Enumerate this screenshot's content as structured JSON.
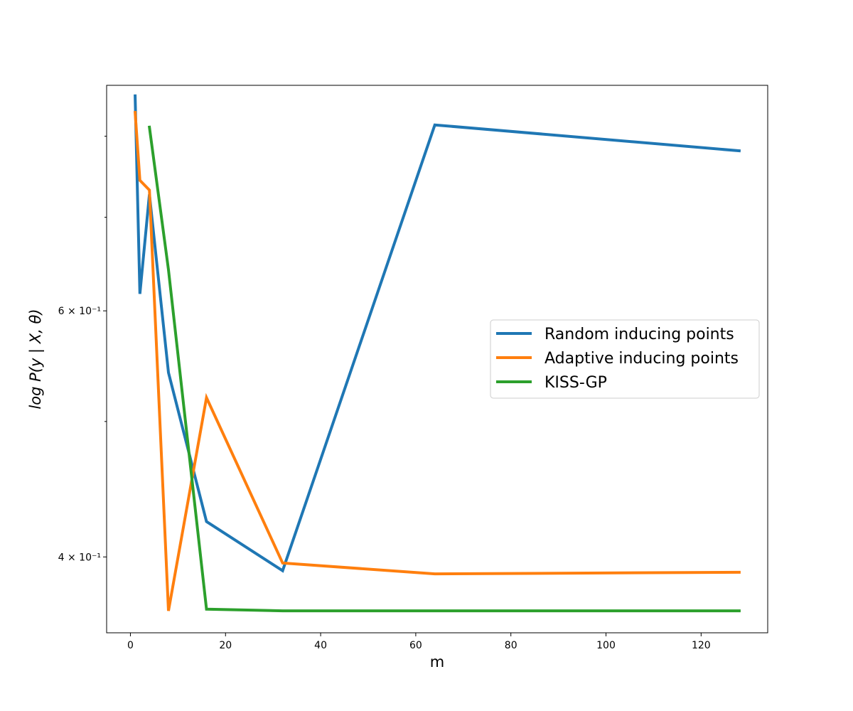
{
  "chart_data": {
    "type": "line",
    "title": "",
    "xlabel": "m",
    "ylabel": "log P(y | X, θ)",
    "yscale": "log",
    "xlim": [
      -5,
      134
    ],
    "ylim": [
      0.353,
      0.87
    ],
    "grid": false,
    "legend_position": "center-right",
    "x_ticks": [
      {
        "value": 0,
        "label": "0"
      },
      {
        "value": 20,
        "label": "20"
      },
      {
        "value": 40,
        "label": "40"
      },
      {
        "value": 60,
        "label": "60"
      },
      {
        "value": 80,
        "label": "80"
      },
      {
        "value": 100,
        "label": "100"
      },
      {
        "value": 120,
        "label": "120"
      }
    ],
    "y_major_ticks": [
      {
        "value": 0.4,
        "label": "4 × 10⁻¹"
      },
      {
        "value": 0.6,
        "label": "6 × 10⁻¹"
      }
    ],
    "y_minor_ticks": [
      0.5,
      0.7,
      0.8
    ],
    "series": [
      {
        "name": "Random inducing points",
        "color": "#1f77b4",
        "x": [
          1,
          2,
          4,
          8,
          16,
          32,
          64,
          128
        ],
        "y": [
          0.855,
          0.617,
          0.727,
          0.542,
          0.424,
          0.391,
          0.815,
          0.781
        ]
      },
      {
        "name": "Adaptive inducing points",
        "color": "#ff7f0e",
        "x": [
          1,
          2,
          4,
          8,
          16,
          32,
          64,
          128
        ],
        "y": [
          0.832,
          0.744,
          0.732,
          0.366,
          0.52,
          0.396,
          0.389,
          0.39
        ]
      },
      {
        "name": "KISS-GP",
        "color": "#2ca02c",
        "x": [
          4,
          8,
          16,
          32,
          64,
          128
        ],
        "y": [
          0.812,
          0.642,
          0.367,
          0.366,
          0.366,
          0.366
        ]
      }
    ]
  }
}
